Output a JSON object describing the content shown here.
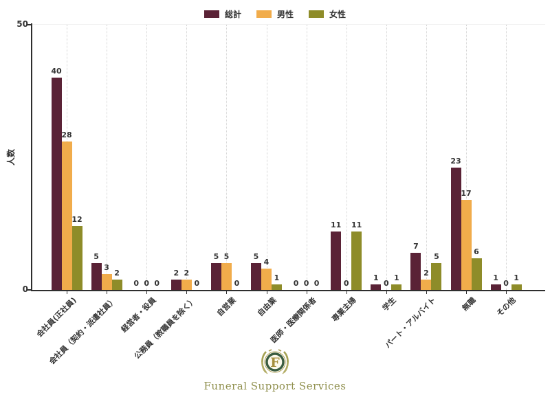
{
  "chart_data": {
    "type": "bar",
    "title": "",
    "xlabel": "",
    "ylabel": "人数",
    "ylim": [
      0,
      50
    ],
    "yticks": [
      0,
      50
    ],
    "grid": "vertical-dotted",
    "legend_position": "top-center",
    "categories": [
      "会社員(正社員)",
      "会社員（契約・派遣社員）",
      "経営者・役員",
      "公務員（教職員を除く）",
      "自営業",
      "自由業",
      "医師・医療関係者",
      "専業主婦",
      "学生",
      "パート・アルバイト",
      "無職",
      "その他"
    ],
    "series": [
      {
        "name": "総計",
        "color": "#5a2236",
        "values": [
          40,
          5,
          0,
          2,
          5,
          5,
          0,
          11,
          1,
          7,
          23,
          1
        ]
      },
      {
        "name": "男性",
        "color": "#f1ac4b",
        "values": [
          28,
          3,
          0,
          2,
          5,
          4,
          0,
          0,
          0,
          2,
          17,
          0
        ]
      },
      {
        "name": "女性",
        "color": "#8e8c29",
        "values": [
          12,
          2,
          0,
          0,
          0,
          1,
          0,
          11,
          1,
          5,
          6,
          1
        ]
      }
    ]
  },
  "footer": {
    "logo_letter": "F",
    "logo_text": "Funeral Support Services"
  },
  "colors": {
    "spine": "#2e2e2e",
    "grid": "#d4d4d4",
    "label": "#333333",
    "logo_gold": "#a89c52",
    "logo_green": "#3a5c3f",
    "logo_text": "#90904e"
  }
}
